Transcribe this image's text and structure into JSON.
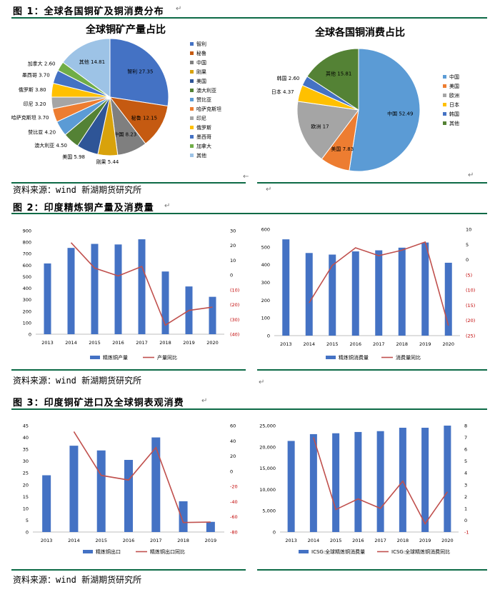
{
  "fig1": {
    "title": "图 1：全球各国铜矿及铜消费分布",
    "source": "资料来源：wind 新湖期货研究所"
  },
  "fig2": {
    "title": "图 2：印度精炼铜产量及消费量",
    "source": "资料来源：wind 新湖期货研究所"
  },
  "fig3": {
    "title": "图 3：印度铜矿进口及全球铜表观消费",
    "source": "资料来源：wind 新湖期货研究所"
  },
  "chart_data": [
    {
      "type": "pie",
      "title": "全球铜矿产量占比",
      "categories": [
        "智利",
        "秘鲁",
        "中国",
        "刚果",
        "美国",
        "澳大利亚",
        "赞比亚",
        "哈萨克斯坦",
        "印尼",
        "俄罗斯",
        "墨西哥",
        "加拿大",
        "其他"
      ],
      "slice_labels": [
        "智利 27.35",
        "秘鲁 12.15",
        "中国 8.23",
        "刚果 5.44",
        "美国 5.98",
        "澳大利亚 4.50",
        "赞比亚 4.20",
        "哈萨克斯坦 3.70",
        "印尼 3.20",
        "俄罗斯 3.80",
        "墨西哥 3.70",
        "加拿大 2.60",
        "其他 14.81"
      ],
      "values": [
        27.35,
        12.15,
        8.23,
        5.44,
        5.98,
        4.5,
        4.2,
        3.7,
        3.2,
        3.8,
        3.7,
        2.6,
        14.81
      ],
      "colors": [
        "#4472c4",
        "#c55a11",
        "#7f7f7f",
        "#d8a20b",
        "#2e5597",
        "#548235",
        "#5b9bd5",
        "#ed7d31",
        "#a5a5a5",
        "#ffc000",
        "#4472c4",
        "#70ad47",
        "#9dc3e6"
      ],
      "legend": "right"
    },
    {
      "type": "pie",
      "title": "全球各国铜消费占比",
      "categories": [
        "中国",
        "美国",
        "欧洲",
        "日本",
        "韩国",
        "其他"
      ],
      "slice_labels": [
        "中国 52.49",
        "美国 7.83",
        "欧洲 17",
        "日本 4.37",
        "韩国 2.60",
        "其他 15.81"
      ],
      "values": [
        52.49,
        7.83,
        17,
        4.37,
        2.6,
        15.81
      ],
      "colors": [
        "#5b9bd5",
        "#ed7d31",
        "#a5a5a5",
        "#ffc000",
        "#4472c4",
        "#548235"
      ],
      "legend": "right"
    },
    {
      "type": "bar",
      "categories": [
        "2013",
        "2014",
        "2015",
        "2016",
        "2017",
        "2018",
        "2019",
        "2020"
      ],
      "series": [
        {
          "name": "精炼铜产量",
          "kind": "bar",
          "axis": "left",
          "values": [
            615,
            750,
            785,
            780,
            825,
            545,
            415,
            325
          ]
        },
        {
          "name": "产量同比",
          "kind": "line",
          "axis": "right",
          "values": [
            null,
            21.9,
            4.7,
            -0.6,
            5.8,
            -33.9,
            -23.9,
            -21.7
          ]
        }
      ],
      "yleft": {
        "min": 0,
        "max": 900,
        "ticks": [
          "0",
          "100",
          "200",
          "300",
          "400",
          "500",
          "600",
          "700",
          "800",
          "900"
        ]
      },
      "yright": {
        "min": -40,
        "max": 30,
        "ticks": [
          "(40)",
          "(30)",
          "(20)",
          "(10)",
          "0",
          "10",
          "20",
          "30"
        ]
      },
      "legend": "bottom"
    },
    {
      "type": "bar",
      "categories": [
        "2013",
        "2014",
        "2015",
        "2016",
        "2017",
        "2018",
        "2019",
        "2020"
      ],
      "series": [
        {
          "name": "精炼铜消费量",
          "kind": "bar",
          "axis": "left",
          "values": [
            543,
            466,
            457,
            475,
            481,
            496,
            525,
            411
          ]
        },
        {
          "name": "消费量同比",
          "kind": "line",
          "axis": "right",
          "values": [
            null,
            -14.2,
            -1.9,
            3.9,
            1.3,
            3.1,
            5.8,
            -21.7
          ]
        }
      ],
      "yleft": {
        "min": 0,
        "max": 600,
        "ticks": [
          "0",
          "100",
          "200",
          "300",
          "400",
          "500",
          "600"
        ]
      },
      "yright": {
        "min": -25,
        "max": 10,
        "ticks": [
          "(25)",
          "(20)",
          "(15)",
          "(10)",
          "(5)",
          "0",
          "5",
          "10"
        ]
      },
      "legend": "bottom"
    },
    {
      "type": "bar",
      "categories": [
        "2013",
        "2014",
        "2015",
        "2016",
        "2017",
        "2018",
        "2019"
      ],
      "series": [
        {
          "name": "精炼铜出口",
          "kind": "bar",
          "axis": "left",
          "values": [
            24,
            36.5,
            34.5,
            30.5,
            40,
            13,
            4.3
          ]
        },
        {
          "name": "精炼铜出口同比",
          "kind": "line",
          "axis": "right",
          "values": [
            null,
            52.1,
            -5.5,
            -11.6,
            31.1,
            -67.5,
            -66.9
          ]
        }
      ],
      "yleft": {
        "min": 0,
        "max": 45,
        "ticks": [
          "0",
          "5",
          "10",
          "15",
          "20",
          "25",
          "30",
          "35",
          "40",
          "45"
        ]
      },
      "yright": {
        "min": -80,
        "max": 60,
        "ticks": [
          "-80",
          "-60",
          "-40",
          "-20",
          "0",
          "20",
          "40",
          "60"
        ]
      },
      "legend": "bottom"
    },
    {
      "type": "bar",
      "categories": [
        "2013",
        "2014",
        "2015",
        "2016",
        "2017",
        "2018",
        "2019",
        "2020"
      ],
      "series": [
        {
          "name": "ICSG:全球精炼铜消费量",
          "kind": "bar",
          "axis": "left",
          "values": [
            21400,
            23000,
            23200,
            23500,
            23700,
            24500,
            24500,
            25000
          ]
        },
        {
          "name": "ICSG:全球精炼铜消费同比",
          "kind": "line",
          "axis": "right",
          "values": [
            null,
            7.0,
            0.9,
            1.8,
            1.0,
            3.3,
            -0.3,
            2.4
          ]
        }
      ],
      "yleft": {
        "min": 0,
        "max": 25000,
        "ticks": [
          "0",
          "5,000",
          "10,000",
          "15,000",
          "20,000",
          "25,000"
        ]
      },
      "yright": {
        "min": -1,
        "max": 8,
        "ticks": [
          "-1",
          "0",
          "1",
          "2",
          "3",
          "4",
          "5",
          "6",
          "7",
          "8"
        ]
      },
      "legend": "bottom"
    }
  ]
}
